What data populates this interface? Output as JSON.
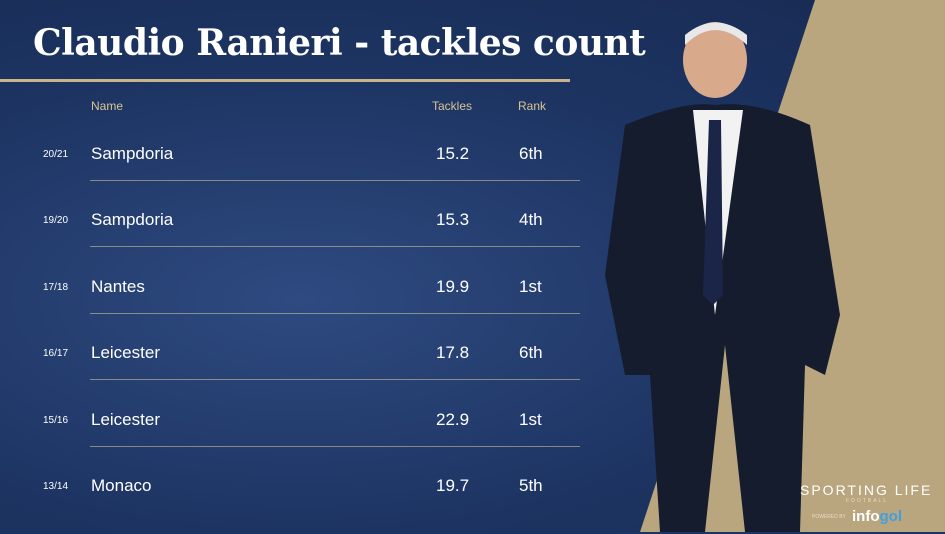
{
  "title": "Claudio Ranieri - tackles count",
  "chart_data": {
    "type": "table",
    "title": "Claudio Ranieri - tackles count",
    "columns": [
      "",
      "Name",
      "Tackles",
      "Rank"
    ],
    "rows": [
      {
        "season": "20/21",
        "name": "Sampdoria",
        "tackles": "15.2",
        "rank": "6th"
      },
      {
        "season": "19/20",
        "name": "Sampdoria",
        "tackles": "15.3",
        "rank": "4th"
      },
      {
        "season": "17/18",
        "name": "Nantes",
        "tackles": "19.9",
        "rank": "1st"
      },
      {
        "season": "16/17",
        "name": "Leicester",
        "tackles": "17.8",
        "rank": "6th"
      },
      {
        "season": "15/16",
        "name": "Leicester",
        "tackles": "22.9",
        "rank": "1st"
      },
      {
        "season": "13/14",
        "name": "Monaco",
        "tackles": "19.7",
        "rank": "5th"
      }
    ]
  },
  "branding": {
    "logo": "SPORTING LIFE",
    "sub": "FOOTBALL",
    "powered": "POWERED BY",
    "partner_a": "info",
    "partner_b": "gol"
  },
  "colors": {
    "background": "#1d3462",
    "accent": "#c9b48a",
    "gold_panel": "#b9a67f"
  }
}
